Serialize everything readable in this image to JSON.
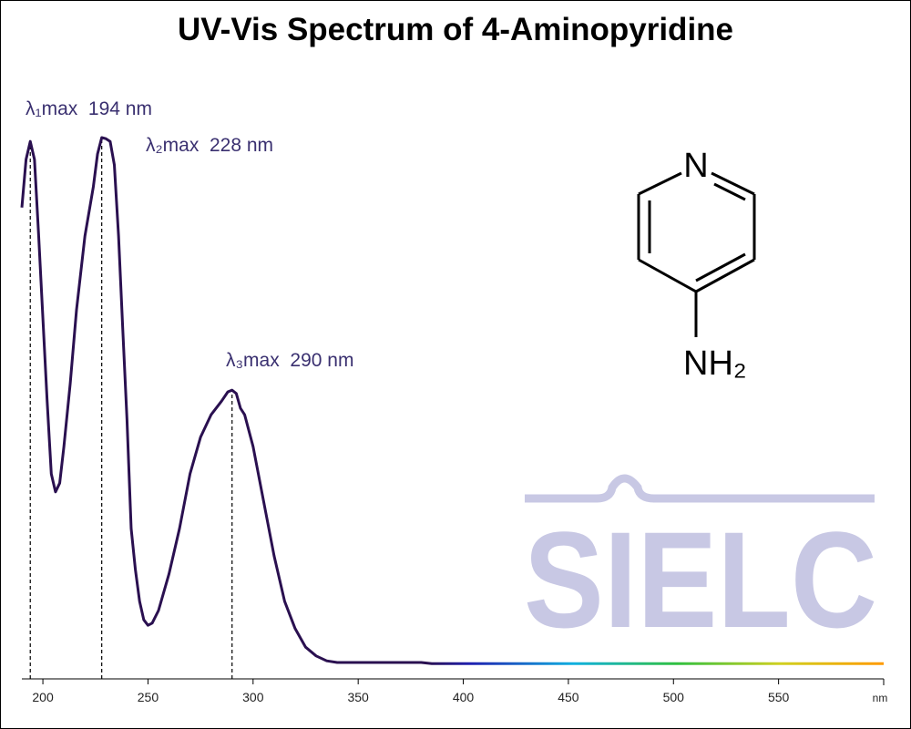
{
  "chart_data": {
    "type": "line",
    "title": "UV-Vis Spectrum of 4-Aminopyridine",
    "x_label": "nm",
    "xlim": [
      190,
      600
    ],
    "ylim": [
      0,
      1
    ],
    "xticks": [
      200,
      250,
      300,
      350,
      400,
      450,
      500,
      550
    ],
    "x": [
      190,
      192,
      194,
      196,
      198,
      200,
      202,
      204,
      206,
      208,
      210,
      213,
      216,
      220,
      224,
      226,
      228,
      230,
      232,
      234,
      236,
      238,
      240,
      242,
      244,
      246,
      248,
      250,
      252,
      255,
      260,
      265,
      270,
      275,
      280,
      285,
      288,
      290,
      292,
      294,
      296,
      300,
      305,
      310,
      315,
      320,
      325,
      330,
      335,
      340,
      380,
      385,
      600
    ],
    "series": [
      {
        "name": "4-Aminopyridine",
        "color": "#2a1050",
        "values": [
          0.862,
          0.95,
          0.983,
          0.95,
          0.81,
          0.66,
          0.51,
          0.375,
          0.342,
          0.358,
          0.425,
          0.54,
          0.675,
          0.81,
          0.9,
          0.96,
          0.99,
          0.988,
          0.983,
          0.94,
          0.81,
          0.64,
          0.475,
          0.275,
          0.2,
          0.142,
          0.108,
          0.098,
          0.102,
          0.125,
          0.192,
          0.275,
          0.375,
          0.442,
          0.483,
          0.508,
          0.525,
          0.528,
          0.522,
          0.495,
          0.483,
          0.425,
          0.325,
          0.225,
          0.142,
          0.092,
          0.058,
          0.042,
          0.033,
          0.03,
          0.03,
          0.028,
          0.028
        ]
      }
    ],
    "annotations": [
      {
        "x": 194,
        "label": "λ₁max  194 nm"
      },
      {
        "x": 228,
        "label": "λ₂max  228 nm"
      },
      {
        "x": 290,
        "label": "λ₃max  290 nm"
      }
    ]
  },
  "molecule": {
    "atoms": [
      "N",
      "NH₂"
    ]
  },
  "watermark": "SIELC"
}
